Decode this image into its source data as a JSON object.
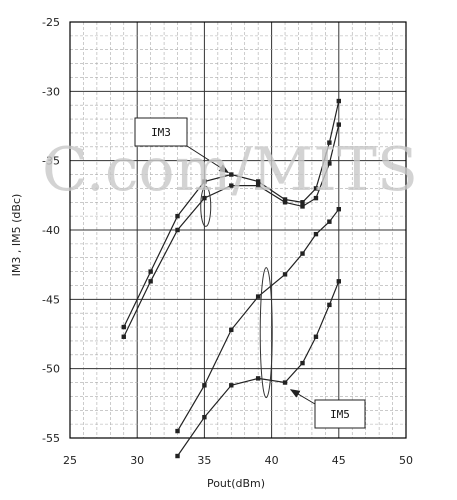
{
  "chart_data": {
    "type": "line",
    "xlabel": "Pout(dBm)",
    "ylabel": "IM3 , IM5 (dBc)",
    "xlim": [
      25,
      50
    ],
    "ylim": [
      -55,
      -25
    ],
    "x_ticks": [
      "25",
      "30",
      "35",
      "40",
      "45",
      "50"
    ],
    "y_ticks": [
      "-25",
      "-30",
      "-35",
      "-40",
      "-45",
      "-50",
      "-55"
    ],
    "grid": true,
    "marker": "square",
    "series": [
      {
        "group": "IM3",
        "x": [
          29,
          31,
          33,
          35,
          37,
          39,
          41,
          42.3,
          43.3,
          44.3,
          45
        ],
        "y": [
          -47.0,
          -43.0,
          -39.0,
          -36.5,
          -36.0,
          -36.5,
          -37.8,
          -38.0,
          -37.0,
          -33.7,
          -30.7
        ]
      },
      {
        "group": "IM3",
        "x": [
          29,
          31,
          33,
          35,
          37,
          39,
          41,
          42.3,
          43.3,
          44.3,
          45
        ],
        "y": [
          -47.7,
          -43.7,
          -40.0,
          -37.7,
          -36.8,
          -36.8,
          -38.0,
          -38.3,
          -37.7,
          -35.2,
          -32.4
        ]
      },
      {
        "group": "IM5",
        "x": [
          33,
          35,
          37,
          39,
          41,
          42.3,
          43.3,
          44.3,
          45
        ],
        "y": [
          -54.5,
          -51.2,
          -47.2,
          -44.8,
          -43.2,
          -41.7,
          -40.3,
          -39.4,
          -38.5
        ]
      },
      {
        "group": "IM5",
        "x": [
          33,
          35,
          37,
          39,
          41,
          42.3,
          43.3,
          44.3,
          45
        ],
        "y": [
          -56.3,
          -53.5,
          -51.2,
          -50.7,
          -51.0,
          -49.6,
          -47.7,
          -45.4,
          -43.7
        ]
      }
    ],
    "annotations": [
      {
        "text": "IM3",
        "points_to": [
          37,
          -36.0
        ]
      },
      {
        "text": "IM5",
        "points_to": [
          41.2,
          -51.3
        ]
      }
    ]
  },
  "watermark_text": "C.com/MITS"
}
